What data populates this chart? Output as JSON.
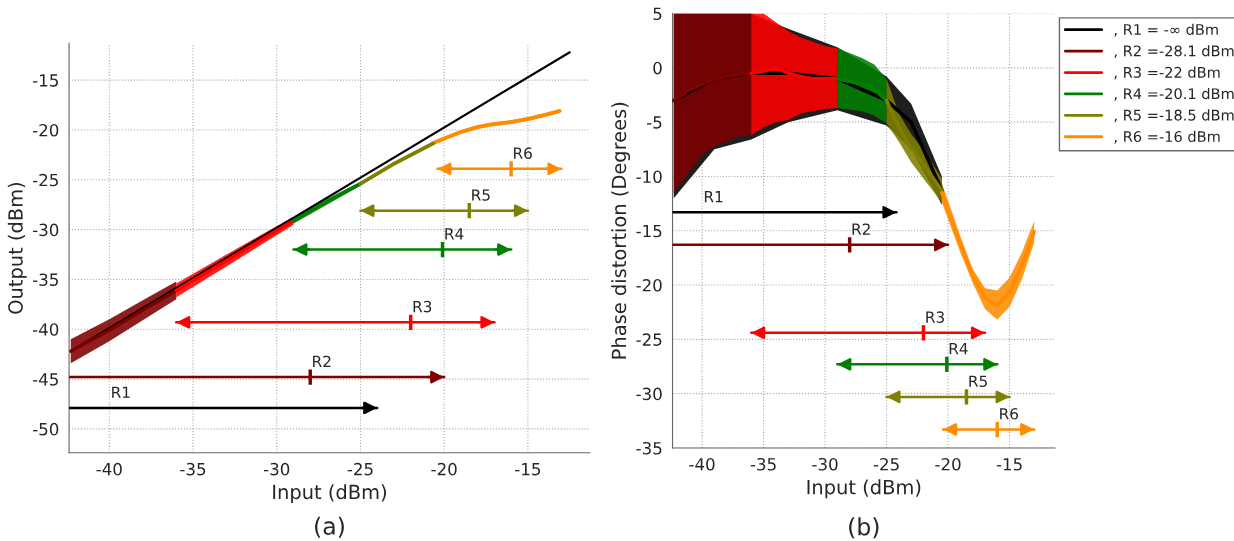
{
  "chart_data": [
    {
      "type": "line",
      "title": "(a)",
      "xlabel": "Input (dBm)",
      "ylabel": "Output (dBm)",
      "xlim": [
        -42.4,
        -11.3
      ],
      "ylim": [
        -52.4,
        -11.3
      ],
      "xticks": [
        -40,
        -35,
        -30,
        -25,
        -20,
        -15
      ],
      "yticks": [
        -50,
        -45,
        -40,
        -35,
        -30,
        -25,
        -20,
        -15
      ],
      "grid": true,
      "legend": false,
      "series": [
        {
          "color": "#000000",
          "x": [
            -42.3,
            -12.5
          ],
          "values": [
            -42.2,
            -12.2
          ]
        },
        {
          "color": "#800000",
          "x": [
            -42.3,
            -40,
            -38,
            -36
          ],
          "values": [
            -42.2,
            -40.1,
            -38.1,
            -36.1
          ],
          "lower": [
            -43.4,
            -41.2,
            -39.1,
            -37.0
          ],
          "upper": [
            -41.0,
            -39.0,
            -37.1,
            -35.2
          ]
        },
        {
          "color": "#ff0000",
          "x": [
            -36,
            -33,
            -31,
            -29
          ],
          "values": [
            -36.1,
            -33.1,
            -31.1,
            -29.1
          ],
          "lower": [
            -36.8,
            -33.7,
            -31.6,
            -29.5
          ],
          "upper": [
            -35.4,
            -32.5,
            -30.6,
            -28.7
          ]
        },
        {
          "color": "#008000",
          "x": [
            -29,
            -27,
            -25
          ],
          "values": [
            -29.1,
            -27.2,
            -25.4
          ],
          "lower": [
            -29.4,
            -27.5,
            -25.6
          ],
          "upper": [
            -28.8,
            -26.9,
            -25.2
          ]
        },
        {
          "color": "#808000",
          "x": [
            -25,
            -23,
            -20.5
          ],
          "values": [
            -25.4,
            -23.4,
            -21.2
          ],
          "lower": [
            -25.6,
            -23.6,
            -21.4
          ],
          "upper": [
            -25.2,
            -23.2,
            -21.0
          ]
        },
        {
          "color": "#ff8c00",
          "x": [
            -20.5,
            -19,
            -18,
            -17,
            -16,
            -15,
            -14,
            -13.1
          ],
          "values": [
            -21.2,
            -20.2,
            -19.7,
            -19.4,
            -19.2,
            -18.9,
            -18.5,
            -18.1
          ],
          "lower": [
            -21.4,
            -20.4,
            -19.9,
            -19.6,
            -19.4,
            -19.1,
            -18.7,
            -18.3
          ],
          "upper": [
            -21.0,
            -20.0,
            -19.5,
            -19.2,
            -19.0,
            -18.7,
            -18.3,
            -17.9
          ]
        },
        {
          "color": "#000000",
          "x": [
            -42.4,
            -24
          ],
          "values": [
            -47.9,
            -47.9
          ]
        },
        {
          "color": "#800000",
          "x": [
            -42.4,
            -28,
            -20
          ],
          "values": [
            -44.8,
            -44.8,
            -44.8
          ]
        },
        {
          "color": "#ff0000",
          "x": [
            -36,
            -22,
            -17
          ],
          "values": [
            -39.3,
            -39.3,
            -39.3
          ]
        },
        {
          "color": "#008000",
          "x": [
            -29,
            -20.1,
            -16
          ],
          "values": [
            -32.0,
            -32.0,
            -32.0
          ]
        },
        {
          "color": "#808000",
          "x": [
            -25,
            -18.5,
            -15
          ],
          "values": [
            -28.1,
            -28.1,
            -28.1
          ]
        },
        {
          "color": "#ff8c00",
          "x": [
            -20.4,
            -16,
            -13
          ],
          "values": [
            -23.9,
            -23.9,
            -23.9
          ]
        }
      ],
      "annotations": [
        {
          "text": "R1",
          "x": -40,
          "y": -47.9
        },
        {
          "text": "R2",
          "x": -28,
          "y": -44.8
        },
        {
          "text": "R3",
          "x": -22,
          "y": -39.3
        },
        {
          "text": "R4",
          "x": -20.1,
          "y": -32.0
        },
        {
          "text": "R5",
          "x": -18.5,
          "y": -28.1
        },
        {
          "text": "R6",
          "x": -16,
          "y": -23.9
        }
      ]
    },
    {
      "type": "line",
      "title": "(b)",
      "xlabel": "Input (dBm)",
      "ylabel": "Phase distortion (Degrees)",
      "xlim": [
        -42.4,
        -11.3
      ],
      "ylim": [
        -35,
        5
      ],
      "xticks": [
        -40,
        -35,
        -30,
        -25,
        -20,
        -15
      ],
      "yticks": [
        -35,
        -30,
        -25,
        -20,
        -15,
        -10,
        -5,
        0,
        5
      ],
      "grid": true,
      "legend": "top right",
      "series": [
        {
          "name": ", R1 = -∞ dBm",
          "color": "#000000",
          "x": [
            -42.3,
            -39,
            -36,
            -33,
            -29,
            -25,
            -23,
            -20.5
          ],
          "values": [
            -3,
            -1,
            -0.5,
            -0.5,
            -1,
            -3,
            -5,
            -11.3
          ],
          "lower": [
            -12,
            -7.5,
            -6.6,
            -5.0,
            -3.9,
            -5.3,
            -7.5,
            -12.6
          ],
          "upper": [
            5,
            5,
            5,
            3.6,
            1.9,
            -0.8,
            -3.3,
            -10.0
          ]
        },
        {
          "name": ", R2 =-28.1 dBm",
          "color": "#800000",
          "x": [
            -42.3,
            -41,
            -40,
            -39,
            -38,
            -37,
            -36
          ],
          "values": [
            -3,
            -2,
            -1.5,
            -1,
            -0.8,
            -0.6,
            -0.5
          ],
          "lower": [
            -11.5,
            -9.5,
            -8,
            -7.2,
            -6.8,
            -6.3,
            -6.2
          ],
          "upper": [
            5,
            5,
            5,
            5,
            5,
            5,
            5
          ]
        },
        {
          "name": ", R3 =-22 dBm",
          "color": "#ff0000",
          "x": [
            -36,
            -35,
            -34,
            -33,
            -32,
            -31,
            -30,
            -29
          ],
          "values": [
            -0.5,
            -0.3,
            0,
            -0.5,
            -0.8,
            -1,
            -1,
            -1
          ],
          "lower": [
            -6.2,
            -5.5,
            -5.0,
            -4.8,
            -4.2,
            -4.0,
            -3.8,
            -3.7
          ],
          "upper": [
            5,
            5,
            4.2,
            3.4,
            2.8,
            2.4,
            2.0,
            1.8
          ]
        },
        {
          "name": ", R4 =-20.1 dBm",
          "color": "#008000",
          "x": [
            -29,
            -27,
            -26,
            -25
          ],
          "values": [
            -1,
            -1.5,
            -2,
            -3
          ],
          "lower": [
            -3.7,
            -4.0,
            -4.4,
            -5.1
          ],
          "upper": [
            1.8,
            0.9,
            0.3,
            -1.0
          ]
        },
        {
          "name": ", R5 =-18.5 dBm",
          "color": "#808000",
          "x": [
            -25,
            -24,
            -23,
            -22,
            -20.5
          ],
          "values": [
            -3,
            -5.5,
            -7.4,
            -8.9,
            -11.3
          ],
          "lower": [
            -5.1,
            -6.8,
            -8.7,
            -10.2,
            -12.4
          ],
          "upper": [
            -1.0,
            -4.2,
            -6.1,
            -7.6,
            -10.2
          ]
        },
        {
          "name": ", R6 =-16 dBm",
          "color": "#ff8c00",
          "x": [
            -20.5,
            -19,
            -18,
            -17,
            -16,
            -15,
            -14,
            -13
          ],
          "values": [
            -11.5,
            -16.2,
            -19.1,
            -21.2,
            -21.9,
            -20.6,
            -18.2,
            -15.1
          ],
          "lower": [
            -12.4,
            -17,
            -19.8,
            -22.2,
            -23.2,
            -22.0,
            -19.5,
            -16.1
          ],
          "upper": [
            -10.6,
            -15.5,
            -18.5,
            -20.3,
            -20.5,
            -19.3,
            -17,
            -14.1
          ]
        },
        {
          "color": "#000000",
          "x": [
            -42.4,
            -24.2
          ],
          "values": [
            -13.3,
            -13.3
          ]
        },
        {
          "color": "#800000",
          "x": [
            -42.4,
            -28,
            -20
          ],
          "values": [
            -16.3,
            -16.3,
            -16.3
          ]
        },
        {
          "color": "#ff0000",
          "x": [
            -36,
            -22,
            -17
          ],
          "values": [
            -24.4,
            -24.4,
            -24.4
          ]
        },
        {
          "color": "#008000",
          "x": [
            -29,
            -20.1,
            -16
          ],
          "values": [
            -27.3,
            -27.3,
            -27.3
          ]
        },
        {
          "color": "#808000",
          "x": [
            -25,
            -18.5,
            -15
          ],
          "values": [
            -30.3,
            -30.3,
            -30.3
          ]
        },
        {
          "color": "#ff8c00",
          "x": [
            -20.4,
            -16,
            -13
          ],
          "values": [
            -33.3,
            -33.3,
            -33.3
          ]
        }
      ],
      "annotations": [
        {
          "text": "R1",
          "x": -40,
          "y": -13.3
        },
        {
          "text": "R2",
          "x": -28,
          "y": -16.3
        },
        {
          "text": "R3",
          "x": -22,
          "y": -24.4
        },
        {
          "text": "R4",
          "x": -20.1,
          "y": -27.3
        },
        {
          "text": "R5",
          "x": -18.5,
          "y": -30.3
        },
        {
          "text": "R6",
          "x": -16,
          "y": -33.3
        }
      ]
    }
  ]
}
